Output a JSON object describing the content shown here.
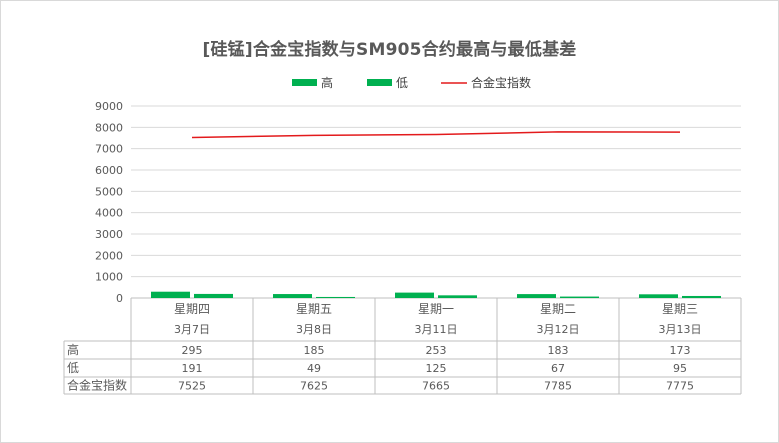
{
  "chart_data": {
    "type": "bar",
    "title": "[硅锰]合金宝指数与SM905合约最高与最低基差",
    "categories": [
      {
        "day": "星期四",
        "date": "3月7日"
      },
      {
        "day": "星期五",
        "date": "3月8日"
      },
      {
        "day": "星期一",
        "date": "3月11日"
      },
      {
        "day": "星期二",
        "date": "3月12日"
      },
      {
        "day": "星期三",
        "date": "3月13日"
      }
    ],
    "series": [
      {
        "name": "高",
        "type": "bar",
        "color": "#00b050",
        "values": [
          295,
          185,
          253,
          183,
          173
        ]
      },
      {
        "name": "低",
        "type": "bar",
        "color": "#00b050",
        "values": [
          191,
          49,
          125,
          67,
          95
        ]
      },
      {
        "name": "合金宝指数",
        "type": "line",
        "color": "#e31a1c",
        "values": [
          7525,
          7625,
          7665,
          7785,
          7775
        ]
      }
    ],
    "yticks": [
      0,
      1000,
      2000,
      3000,
      4000,
      5000,
      6000,
      7000,
      8000,
      9000
    ],
    "ylim": [
      0,
      9000
    ],
    "legend_position": "top",
    "grid": true,
    "data_table": true
  }
}
